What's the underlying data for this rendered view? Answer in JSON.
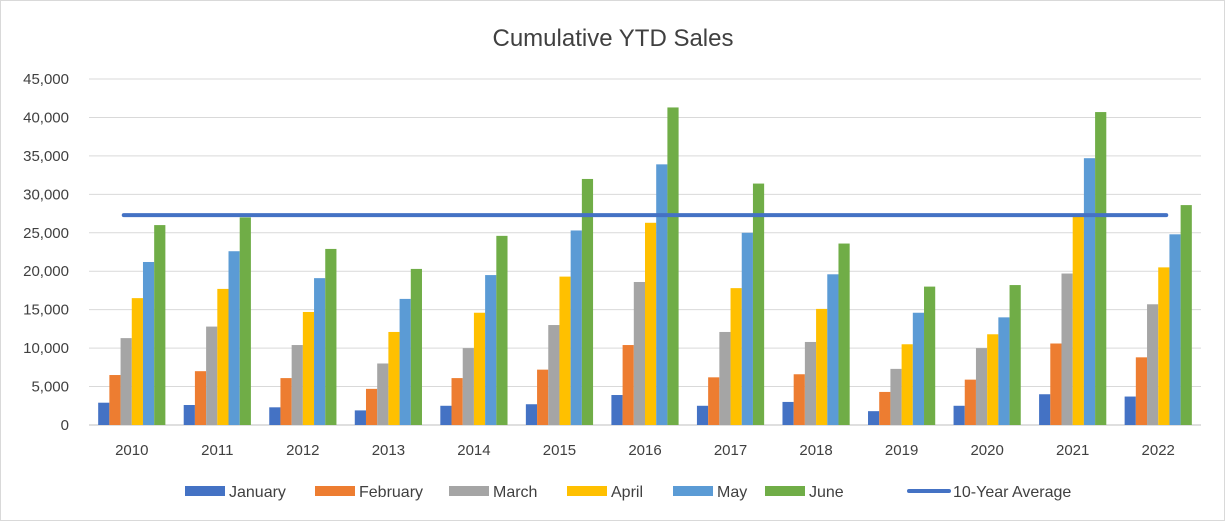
{
  "chart_data": {
    "type": "bar",
    "title": "Cumulative YTD Sales",
    "xlabel": "",
    "ylabel": "",
    "ylim": [
      0,
      45000
    ],
    "yticks": [
      0,
      5000,
      10000,
      15000,
      20000,
      25000,
      30000,
      35000,
      40000,
      45000
    ],
    "ytick_labels": [
      "0",
      "5,000",
      "10,000",
      "15,000",
      "20,000",
      "25,000",
      "30,000",
      "35,000",
      "40,000",
      "45,000"
    ],
    "grid": true,
    "legend_position": "bottom",
    "categories": [
      "2010",
      "2011",
      "2012",
      "2013",
      "2014",
      "2015",
      "2016",
      "2017",
      "2018",
      "2019",
      "2020",
      "2021",
      "2022"
    ],
    "series": [
      {
        "name": "January",
        "color": "#4472C4",
        "values": [
          2900,
          2600,
          2300,
          1900,
          2500,
          2700,
          3900,
          2500,
          3000,
          1800,
          2500,
          4000,
          3700
        ]
      },
      {
        "name": "February",
        "color": "#ED7D31",
        "values": [
          6500,
          7000,
          6100,
          4700,
          6100,
          7200,
          10400,
          6200,
          6600,
          4300,
          5900,
          10600,
          8800
        ]
      },
      {
        "name": "March",
        "color": "#A5A5A5",
        "values": [
          11300,
          12800,
          10400,
          8000,
          10000,
          13000,
          18600,
          12100,
          10800,
          7300,
          10000,
          19700,
          15700
        ]
      },
      {
        "name": "April",
        "color": "#FFC000",
        "values": [
          16500,
          17700,
          14700,
          12100,
          14600,
          19300,
          26300,
          17800,
          15100,
          10500,
          11800,
          27100,
          20500
        ]
      },
      {
        "name": "May",
        "color": "#5B9BD5",
        "values": [
          21200,
          22600,
          19100,
          16400,
          19500,
          25300,
          33900,
          25000,
          19600,
          14600,
          14000,
          34700,
          24800
        ]
      },
      {
        "name": "June",
        "color": "#70AD47",
        "values": [
          26000,
          27000,
          22900,
          20300,
          24600,
          32000,
          41300,
          31400,
          23600,
          18000,
          18200,
          40700,
          28600
        ]
      }
    ],
    "average_line": {
      "name": "10-Year Average",
      "color": "#4472C4",
      "value": 27300
    }
  }
}
